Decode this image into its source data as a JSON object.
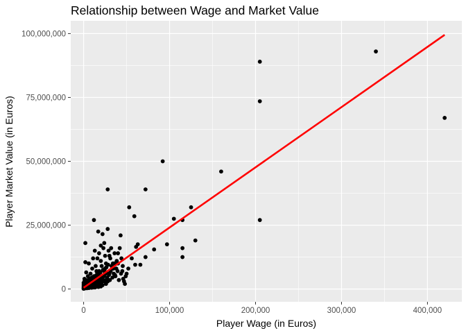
{
  "chart_data": {
    "type": "scatter",
    "title": "Relationship between Wage and Market Value",
    "xlabel": "Player Wage (in Euros)",
    "ylabel": "Player Market Value (in Euros)",
    "xlim": [
      -15000,
      440000
    ],
    "ylim": [
      -5000000,
      105000000
    ],
    "xticks": [
      0,
      100000,
      200000,
      300000,
      400000
    ],
    "xtick_labels": [
      "0",
      "100,000",
      "200,000",
      "300,000",
      "400,000"
    ],
    "yticks": [
      0,
      25000000,
      50000000,
      75000000,
      100000000
    ],
    "ytick_labels": [
      "0",
      "25,000,000",
      "50,000,000",
      "75,000,000",
      "100,000,000"
    ],
    "grid": true,
    "point_color": "#000000",
    "line_color": "#ff0000",
    "background": "#ebebeb",
    "grid_color": "#ffffff",
    "trend_line": {
      "x": [
        0,
        420000
      ],
      "y": [
        500000,
        99500000
      ]
    },
    "points": [
      [
        420000,
        67000000
      ],
      [
        340000,
        93000000
      ],
      [
        205000,
        89000000
      ],
      [
        205000,
        73500000
      ],
      [
        205000,
        27000000
      ],
      [
        160000,
        46000000
      ],
      [
        130000,
        19000000
      ],
      [
        125000,
        32000000
      ],
      [
        115000,
        27000000
      ],
      [
        115000,
        16000000
      ],
      [
        115000,
        12500000
      ],
      [
        105000,
        27500000
      ],
      [
        97000,
        17500000
      ],
      [
        92000,
        50000000
      ],
      [
        82000,
        15500000
      ],
      [
        72000,
        39000000
      ],
      [
        72000,
        12500000
      ],
      [
        66000,
        9500000
      ],
      [
        63000,
        17500000
      ],
      [
        61000,
        16500000
      ],
      [
        59000,
        28500000
      ],
      [
        60000,
        9500000
      ],
      [
        56000,
        12000000
      ],
      [
        53000,
        32000000
      ],
      [
        52000,
        8000000
      ],
      [
        49000,
        5000000
      ],
      [
        48000,
        2000000
      ],
      [
        46000,
        4000000
      ],
      [
        45000,
        7000000
      ],
      [
        44000,
        12000000
      ],
      [
        43000,
        21000000
      ],
      [
        42000,
        16000000
      ],
      [
        40000,
        10000000
      ],
      [
        38000,
        8000000
      ],
      [
        37000,
        5000000
      ],
      [
        36000,
        14000000
      ],
      [
        35000,
        6000000
      ],
      [
        34000,
        10000000
      ],
      [
        32000,
        16000000
      ],
      [
        31000,
        12000000
      ],
      [
        30000,
        6000000
      ],
      [
        29000,
        15000000
      ],
      [
        28000,
        39000000
      ],
      [
        28000,
        23500000
      ],
      [
        27000,
        4000000
      ],
      [
        26000,
        10000000
      ],
      [
        25000,
        13000000
      ],
      [
        24000,
        7000000
      ],
      [
        23000,
        16000000
      ],
      [
        22000,
        21500000
      ],
      [
        21000,
        9000000
      ],
      [
        20000,
        17000000
      ],
      [
        19000,
        4000000
      ],
      [
        18000,
        14000000
      ],
      [
        17000,
        22500000
      ],
      [
        16000,
        12000000
      ],
      [
        15000,
        7000000
      ],
      [
        14000,
        9000000
      ],
      [
        13000,
        15000000
      ],
      [
        12000,
        27000000
      ],
      [
        12000,
        5000000
      ],
      [
        11000,
        12000000
      ],
      [
        10000,
        8000000
      ],
      [
        9000,
        3000000
      ],
      [
        8000,
        6000000
      ],
      [
        7000,
        4000000
      ],
      [
        6000,
        10000000
      ],
      [
        5000,
        5000000
      ],
      [
        4000,
        2000000
      ],
      [
        3000,
        6500000
      ],
      [
        2000,
        18000000
      ],
      [
        2000,
        10500000
      ],
      [
        1000,
        4000000
      ],
      [
        500,
        1500000
      ],
      [
        1500,
        500000
      ],
      [
        2500,
        2500000
      ],
      [
        3500,
        1000000
      ],
      [
        4500,
        3000000
      ],
      [
        5500,
        1500000
      ],
      [
        6500,
        2500000
      ],
      [
        7500,
        1000000
      ],
      [
        8500,
        2000000
      ],
      [
        9500,
        4500000
      ],
      [
        10500,
        3000000
      ],
      [
        11500,
        1500000
      ],
      [
        12500,
        3500000
      ],
      [
        13500,
        2500000
      ],
      [
        14500,
        4500000
      ],
      [
        15500,
        2000000
      ],
      [
        16500,
        3000000
      ],
      [
        17500,
        5500000
      ],
      [
        18500,
        2500000
      ],
      [
        19500,
        6500000
      ],
      [
        20500,
        3000000
      ],
      [
        21500,
        4500000
      ],
      [
        22500,
        7500000
      ],
      [
        23500,
        5000000
      ],
      [
        24500,
        3000000
      ],
      [
        25500,
        6000000
      ],
      [
        26500,
        8500000
      ],
      [
        27500,
        4500000
      ],
      [
        28500,
        9500000
      ],
      [
        29500,
        5500000
      ],
      [
        30500,
        3500000
      ],
      [
        31500,
        7000000
      ],
      [
        32500,
        9000000
      ],
      [
        33500,
        4500000
      ],
      [
        34500,
        8000000
      ],
      [
        35500,
        10000000
      ],
      [
        36500,
        5500000
      ],
      [
        38500,
        11000000
      ],
      [
        39500,
        7000000
      ],
      [
        41000,
        3500000
      ],
      [
        43500,
        6000000
      ],
      [
        45500,
        9000000
      ],
      [
        47000,
        3000000
      ],
      [
        50000,
        6000000
      ],
      [
        1000,
        500000
      ],
      [
        2000,
        1000000
      ],
      [
        3000,
        1500000
      ],
      [
        4000,
        600000
      ],
      [
        5000,
        2500000
      ],
      [
        6000,
        800000
      ],
      [
        7000,
        1800000
      ],
      [
        8000,
        3500000
      ],
      [
        9000,
        1200000
      ],
      [
        10000,
        2200000
      ],
      [
        11000,
        600000
      ],
      [
        12000,
        1000000
      ],
      [
        13000,
        4000000
      ],
      [
        14000,
        1800000
      ],
      [
        15000,
        900000
      ],
      [
        16000,
        5000000
      ],
      [
        17000,
        1400000
      ],
      [
        18000,
        7000000
      ],
      [
        19000,
        2000000
      ],
      [
        20000,
        1000000
      ],
      [
        21000,
        2500000
      ],
      [
        22000,
        1500000
      ],
      [
        23000,
        3500000
      ],
      [
        24000,
        5500000
      ],
      [
        25000,
        8000000
      ],
      [
        26000,
        2000000
      ],
      [
        27000,
        6500000
      ],
      [
        28000,
        3000000
      ],
      [
        500,
        300000
      ],
      [
        800,
        700000
      ],
      [
        1200,
        200000
      ],
      [
        1800,
        1200000
      ],
      [
        2200,
        400000
      ],
      [
        2800,
        900000
      ],
      [
        3200,
        2000000
      ],
      [
        3800,
        300000
      ],
      [
        4200,
        1500000
      ],
      [
        4800,
        700000
      ],
      [
        5200,
        3500000
      ],
      [
        5800,
        1100000
      ],
      [
        6200,
        400000
      ],
      [
        6800,
        2200000
      ],
      [
        7200,
        600000
      ],
      [
        7800,
        3000000
      ],
      [
        8200,
        900000
      ],
      [
        8800,
        1600000
      ],
      [
        9200,
        500000
      ],
      [
        9800,
        2700000
      ],
      [
        10200,
        1300000
      ],
      [
        10800,
        4000000
      ],
      [
        11200,
        2000000
      ],
      [
        11800,
        800000
      ],
      [
        12200,
        3200000
      ],
      [
        12800,
        1600000
      ],
      [
        13200,
        600000
      ],
      [
        13800,
        2600000
      ],
      [
        14200,
        5200000
      ],
      [
        14800,
        3800000
      ],
      [
        15200,
        1400000
      ],
      [
        15800,
        6200000
      ],
      [
        16200,
        2400000
      ],
      [
        16800,
        4200000
      ],
      [
        17200,
        800000
      ],
      [
        0,
        100000
      ],
      [
        0,
        400000
      ],
      [
        0,
        900000
      ],
      [
        0,
        1600000
      ],
      [
        0,
        2400000
      ],
      [
        300,
        200000
      ],
      [
        300,
        1100000
      ],
      [
        600,
        2000000
      ],
      [
        900,
        3000000
      ],
      [
        1500,
        3800000
      ],
      [
        20000,
        11000000
      ],
      [
        30000,
        13000000
      ],
      [
        40000,
        14000000
      ],
      [
        24000,
        18000000
      ],
      [
        33000,
        9000000
      ]
    ]
  }
}
